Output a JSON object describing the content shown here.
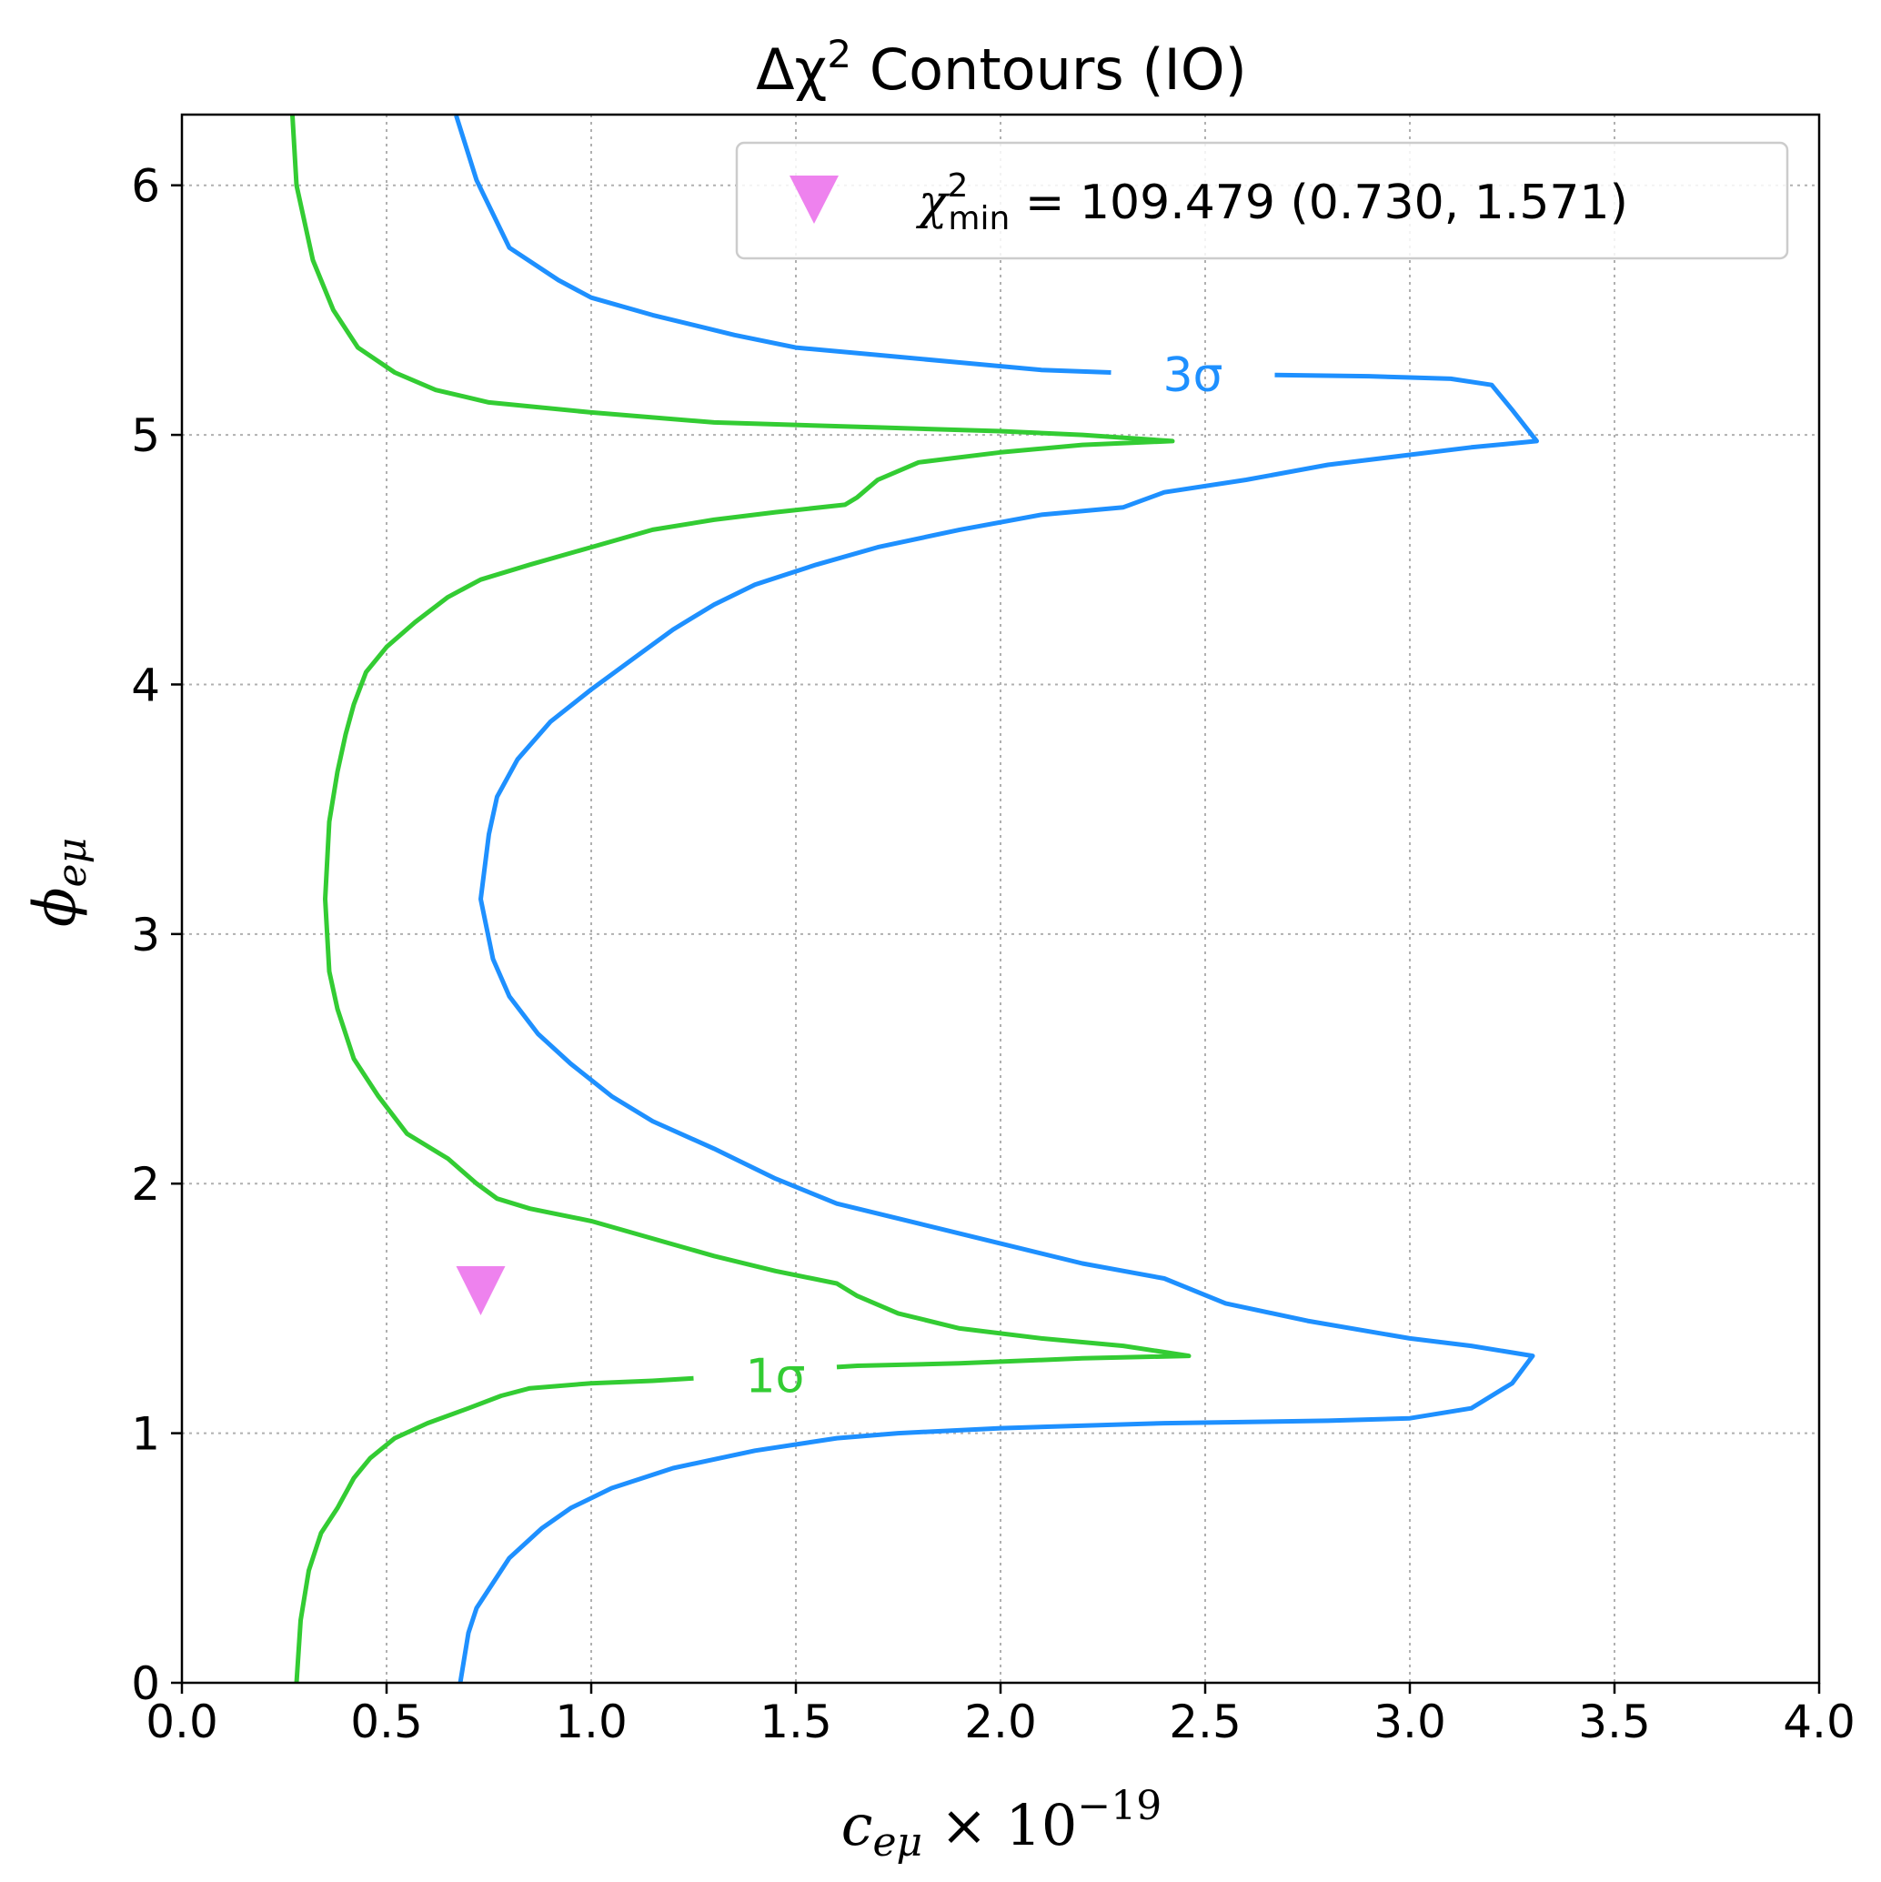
{
  "chart_data": {
    "type": "line",
    "title": "Δχ² Contours (IO)",
    "title_parts": {
      "pre": "Δχ",
      "sup": "2",
      "post": " Contours (IO)"
    },
    "xlabel": "c_eμ × 10^−19",
    "xlabel_parts": {
      "var": "c",
      "sub": "eμ",
      "times": " × 10",
      "sup": "−19"
    },
    "ylabel": "φ_eμ",
    "ylabel_parts": {
      "var": "ϕ",
      "sub": "eμ"
    },
    "xlim": [
      0,
      4
    ],
    "ylim": [
      0,
      6.2832
    ],
    "xticks": [
      "0.0",
      "0.5",
      "1.0",
      "1.5",
      "2.0",
      "2.5",
      "3.0",
      "3.5",
      "4.0"
    ],
    "yticks": [
      "0",
      "1",
      "2",
      "3",
      "4",
      "5",
      "6"
    ],
    "grid": true,
    "legend_placement": "top-right",
    "legend": {
      "text": "χ²_min = 109.479 (0.730, 1.571)",
      "parts": {
        "chi": "χ",
        "sup": "2",
        "sub": "min",
        "rest": " = 109.479 (0.730, 1.571)"
      }
    },
    "best_fit": {
      "x": 0.73,
      "y": 1.571,
      "marker": "triangle-down",
      "color": "#ee82ee"
    },
    "contours": [
      {
        "label": "1σ",
        "color": "#33cc33",
        "label_at": {
          "x": 1.45,
          "y": 1.23
        },
        "segments": [
          [
            [
              0.27,
              6.28
            ],
            [
              0.28,
              6.0
            ],
            [
              0.32,
              5.7
            ],
            [
              0.37,
              5.5
            ],
            [
              0.43,
              5.35
            ],
            [
              0.52,
              5.25
            ],
            [
              0.62,
              5.18
            ],
            [
              0.75,
              5.13
            ],
            [
              1.0,
              5.09
            ],
            [
              1.3,
              5.05
            ],
            [
              1.7,
              5.03
            ],
            [
              2.0,
              5.015
            ],
            [
              2.2,
              5.0
            ],
            [
              2.42,
              4.975
            ],
            [
              2.2,
              4.96
            ],
            [
              2.0,
              4.93
            ],
            [
              1.8,
              4.89
            ],
            [
              1.7,
              4.82
            ],
            [
              1.65,
              4.75
            ],
            [
              1.62,
              4.72
            ],
            [
              1.45,
              4.69
            ],
            [
              1.3,
              4.66
            ],
            [
              1.15,
              4.62
            ],
            [
              1.0,
              4.55
            ],
            [
              0.85,
              4.48
            ],
            [
              0.73,
              4.42
            ],
            [
              0.65,
              4.35
            ],
            [
              0.57,
              4.25
            ],
            [
              0.5,
              4.15
            ],
            [
              0.45,
              4.05
            ],
            [
              0.42,
              3.92
            ],
            [
              0.4,
              3.8
            ],
            [
              0.38,
              3.65
            ],
            [
              0.36,
              3.45
            ],
            [
              0.35,
              3.14
            ],
            [
              0.36,
              2.85
            ],
            [
              0.38,
              2.7
            ],
            [
              0.42,
              2.5
            ],
            [
              0.48,
              2.35
            ],
            [
              0.55,
              2.2
            ],
            [
              0.65,
              2.1
            ],
            [
              0.72,
              2.0
            ],
            [
              0.77,
              1.94
            ],
            [
              0.85,
              1.9
            ],
            [
              1.0,
              1.85
            ],
            [
              1.15,
              1.78
            ],
            [
              1.3,
              1.71
            ],
            [
              1.45,
              1.65
            ],
            [
              1.6,
              1.6
            ],
            [
              1.65,
              1.55
            ],
            [
              1.75,
              1.48
            ],
            [
              1.9,
              1.42
            ],
            [
              2.1,
              1.38
            ],
            [
              2.3,
              1.35
            ],
            [
              2.46,
              1.31
            ],
            [
              2.2,
              1.3
            ],
            [
              1.9,
              1.28
            ],
            [
              1.65,
              1.27
            ],
            [
              1.6,
              1.265
            ]
          ],
          [
            [
              1.25,
              1.22
            ],
            [
              1.15,
              1.21
            ],
            [
              1.0,
              1.2
            ],
            [
              0.85,
              1.18
            ],
            [
              0.78,
              1.15
            ],
            [
              0.7,
              1.1
            ],
            [
              0.6,
              1.04
            ],
            [
              0.52,
              0.98
            ],
            [
              0.46,
              0.9
            ],
            [
              0.42,
              0.82
            ],
            [
              0.38,
              0.7
            ],
            [
              0.34,
              0.6
            ],
            [
              0.31,
              0.45
            ],
            [
              0.29,
              0.25
            ],
            [
              0.28,
              0.0
            ]
          ]
        ]
      },
      {
        "label": "3σ",
        "color": "#1e90ff",
        "label_at": {
          "x": 2.47,
          "y": 5.24
        },
        "segments": [
          [
            [
              0.67,
              6.28
            ],
            [
              0.72,
              6.02
            ],
            [
              0.8,
              5.75
            ],
            [
              0.92,
              5.62
            ],
            [
              1.0,
              5.55
            ],
            [
              1.15,
              5.48
            ],
            [
              1.35,
              5.4
            ],
            [
              1.5,
              5.35
            ],
            [
              1.7,
              5.32
            ],
            [
              1.9,
              5.29
            ],
            [
              2.1,
              5.26
            ],
            [
              2.27,
              5.25
            ]
          ],
          [
            [
              2.67,
              5.24
            ],
            [
              2.9,
              5.235
            ],
            [
              3.0,
              5.23
            ],
            [
              3.1,
              5.225
            ],
            [
              3.2,
              5.2
            ],
            [
              3.25,
              5.1
            ],
            [
              3.31,
              4.975
            ],
            [
              3.15,
              4.95
            ],
            [
              3.0,
              4.92
            ],
            [
              2.8,
              4.88
            ],
            [
              2.6,
              4.82
            ],
            [
              2.4,
              4.77
            ],
            [
              2.3,
              4.71
            ],
            [
              2.1,
              4.68
            ],
            [
              1.9,
              4.62
            ],
            [
              1.7,
              4.55
            ],
            [
              1.55,
              4.48
            ],
            [
              1.4,
              4.4
            ],
            [
              1.3,
              4.32
            ],
            [
              1.2,
              4.22
            ],
            [
              1.1,
              4.1
            ],
            [
              1.0,
              3.98
            ],
            [
              0.9,
              3.85
            ],
            [
              0.82,
              3.7
            ],
            [
              0.77,
              3.55
            ],
            [
              0.75,
              3.4
            ],
            [
              0.73,
              3.14
            ],
            [
              0.76,
              2.9
            ],
            [
              0.8,
              2.75
            ],
            [
              0.87,
              2.6
            ],
            [
              0.95,
              2.48
            ],
            [
              1.05,
              2.35
            ],
            [
              1.15,
              2.25
            ],
            [
              1.3,
              2.14
            ],
            [
              1.45,
              2.02
            ],
            [
              1.6,
              1.92
            ],
            [
              1.8,
              1.84
            ],
            [
              2.0,
              1.76
            ],
            [
              2.2,
              1.68
            ],
            [
              2.4,
              1.62
            ],
            [
              2.55,
              1.52
            ],
            [
              2.75,
              1.45
            ],
            [
              3.0,
              1.38
            ],
            [
              3.15,
              1.35
            ],
            [
              3.3,
              1.31
            ],
            [
              3.25,
              1.2
            ],
            [
              3.15,
              1.1
            ],
            [
              3.0,
              1.06
            ],
            [
              2.8,
              1.05
            ],
            [
              2.4,
              1.04
            ],
            [
              2.0,
              1.02
            ],
            [
              1.75,
              1.0
            ],
            [
              1.6,
              0.98
            ],
            [
              1.4,
              0.93
            ],
            [
              1.2,
              0.86
            ],
            [
              1.05,
              0.78
            ],
            [
              0.95,
              0.7
            ],
            [
              0.88,
              0.62
            ],
            [
              0.8,
              0.5
            ],
            [
              0.72,
              0.3
            ],
            [
              0.7,
              0.2
            ],
            [
              0.68,
              0.0
            ]
          ]
        ]
      }
    ]
  }
}
